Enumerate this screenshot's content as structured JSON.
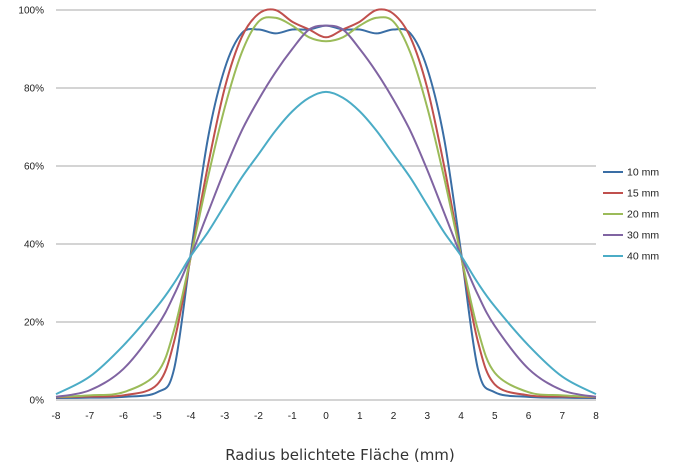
{
  "chart_data": {
    "type": "line",
    "title": "",
    "xlabel": "Radius belichtete Fläche (mm)",
    "ylabel": "",
    "xlim": [
      -8,
      8
    ],
    "ylim": [
      0,
      100
    ],
    "x_ticks": [
      "-8",
      "-7",
      "-6",
      "-5",
      "-4",
      "-3",
      "-2",
      "-1",
      "0",
      "1",
      "2",
      "3",
      "4",
      "5",
      "6",
      "7",
      "8"
    ],
    "y_ticks": [
      "0%",
      "20%",
      "40%",
      "60%",
      "80%",
      "100%"
    ],
    "grid": "horizontal",
    "legend_position": "right",
    "x": [
      -8,
      -7,
      -6,
      -5,
      -4.5,
      -4,
      -3.5,
      -3,
      -2.5,
      -2,
      -1.5,
      -1,
      -0.5,
      0,
      0.5,
      1,
      1.5,
      2,
      2.5,
      3,
      3.5,
      4,
      4.5,
      5,
      6,
      7,
      8
    ],
    "series": [
      {
        "name": "10 mm",
        "color": "#3a6ea5",
        "values": [
          0.5,
          0.6,
          0.8,
          2,
          8,
          38,
          67,
          85,
          94,
          95,
          94,
          95,
          95,
          96,
          95,
          95,
          94,
          95,
          94,
          85,
          67,
          38,
          8,
          2,
          0.8,
          0.6,
          0.5
        ]
      },
      {
        "name": "15 mm",
        "color": "#c0504d",
        "values": [
          0.7,
          0.9,
          1.2,
          4,
          15,
          37,
          60,
          80,
          93,
          99,
          100,
          97,
          95,
          93,
          95,
          97,
          100,
          99,
          93,
          80,
          60,
          37,
          15,
          4,
          1.2,
          0.9,
          0.7
        ]
      },
      {
        "name": "20 mm",
        "color": "#9bbb59",
        "values": [
          0.8,
          1.2,
          2,
          7,
          18,
          37,
          57,
          75,
          89,
          97,
          98,
          96,
          93,
          92,
          93,
          96,
          98,
          97,
          89,
          75,
          57,
          37,
          18,
          7,
          2,
          1.2,
          0.8
        ]
      },
      {
        "name": "30 mm",
        "color": "#8064a2",
        "values": [
          0.8,
          2.5,
          8,
          19,
          27,
          37,
          48,
          59,
          69,
          77,
          84,
          90,
          95,
          96,
          95,
          90,
          84,
          77,
          69,
          59,
          48,
          37,
          27,
          19,
          8,
          2.5,
          0.8
        ]
      },
      {
        "name": "40 mm",
        "color": "#4bacc6",
        "values": [
          1.5,
          6,
          14,
          24,
          30,
          37,
          43,
          50,
          57,
          63,
          69,
          74,
          77.5,
          79,
          77.5,
          74,
          69,
          63,
          57,
          50,
          43,
          37,
          30,
          24,
          14,
          6,
          1.5
        ]
      }
    ]
  }
}
